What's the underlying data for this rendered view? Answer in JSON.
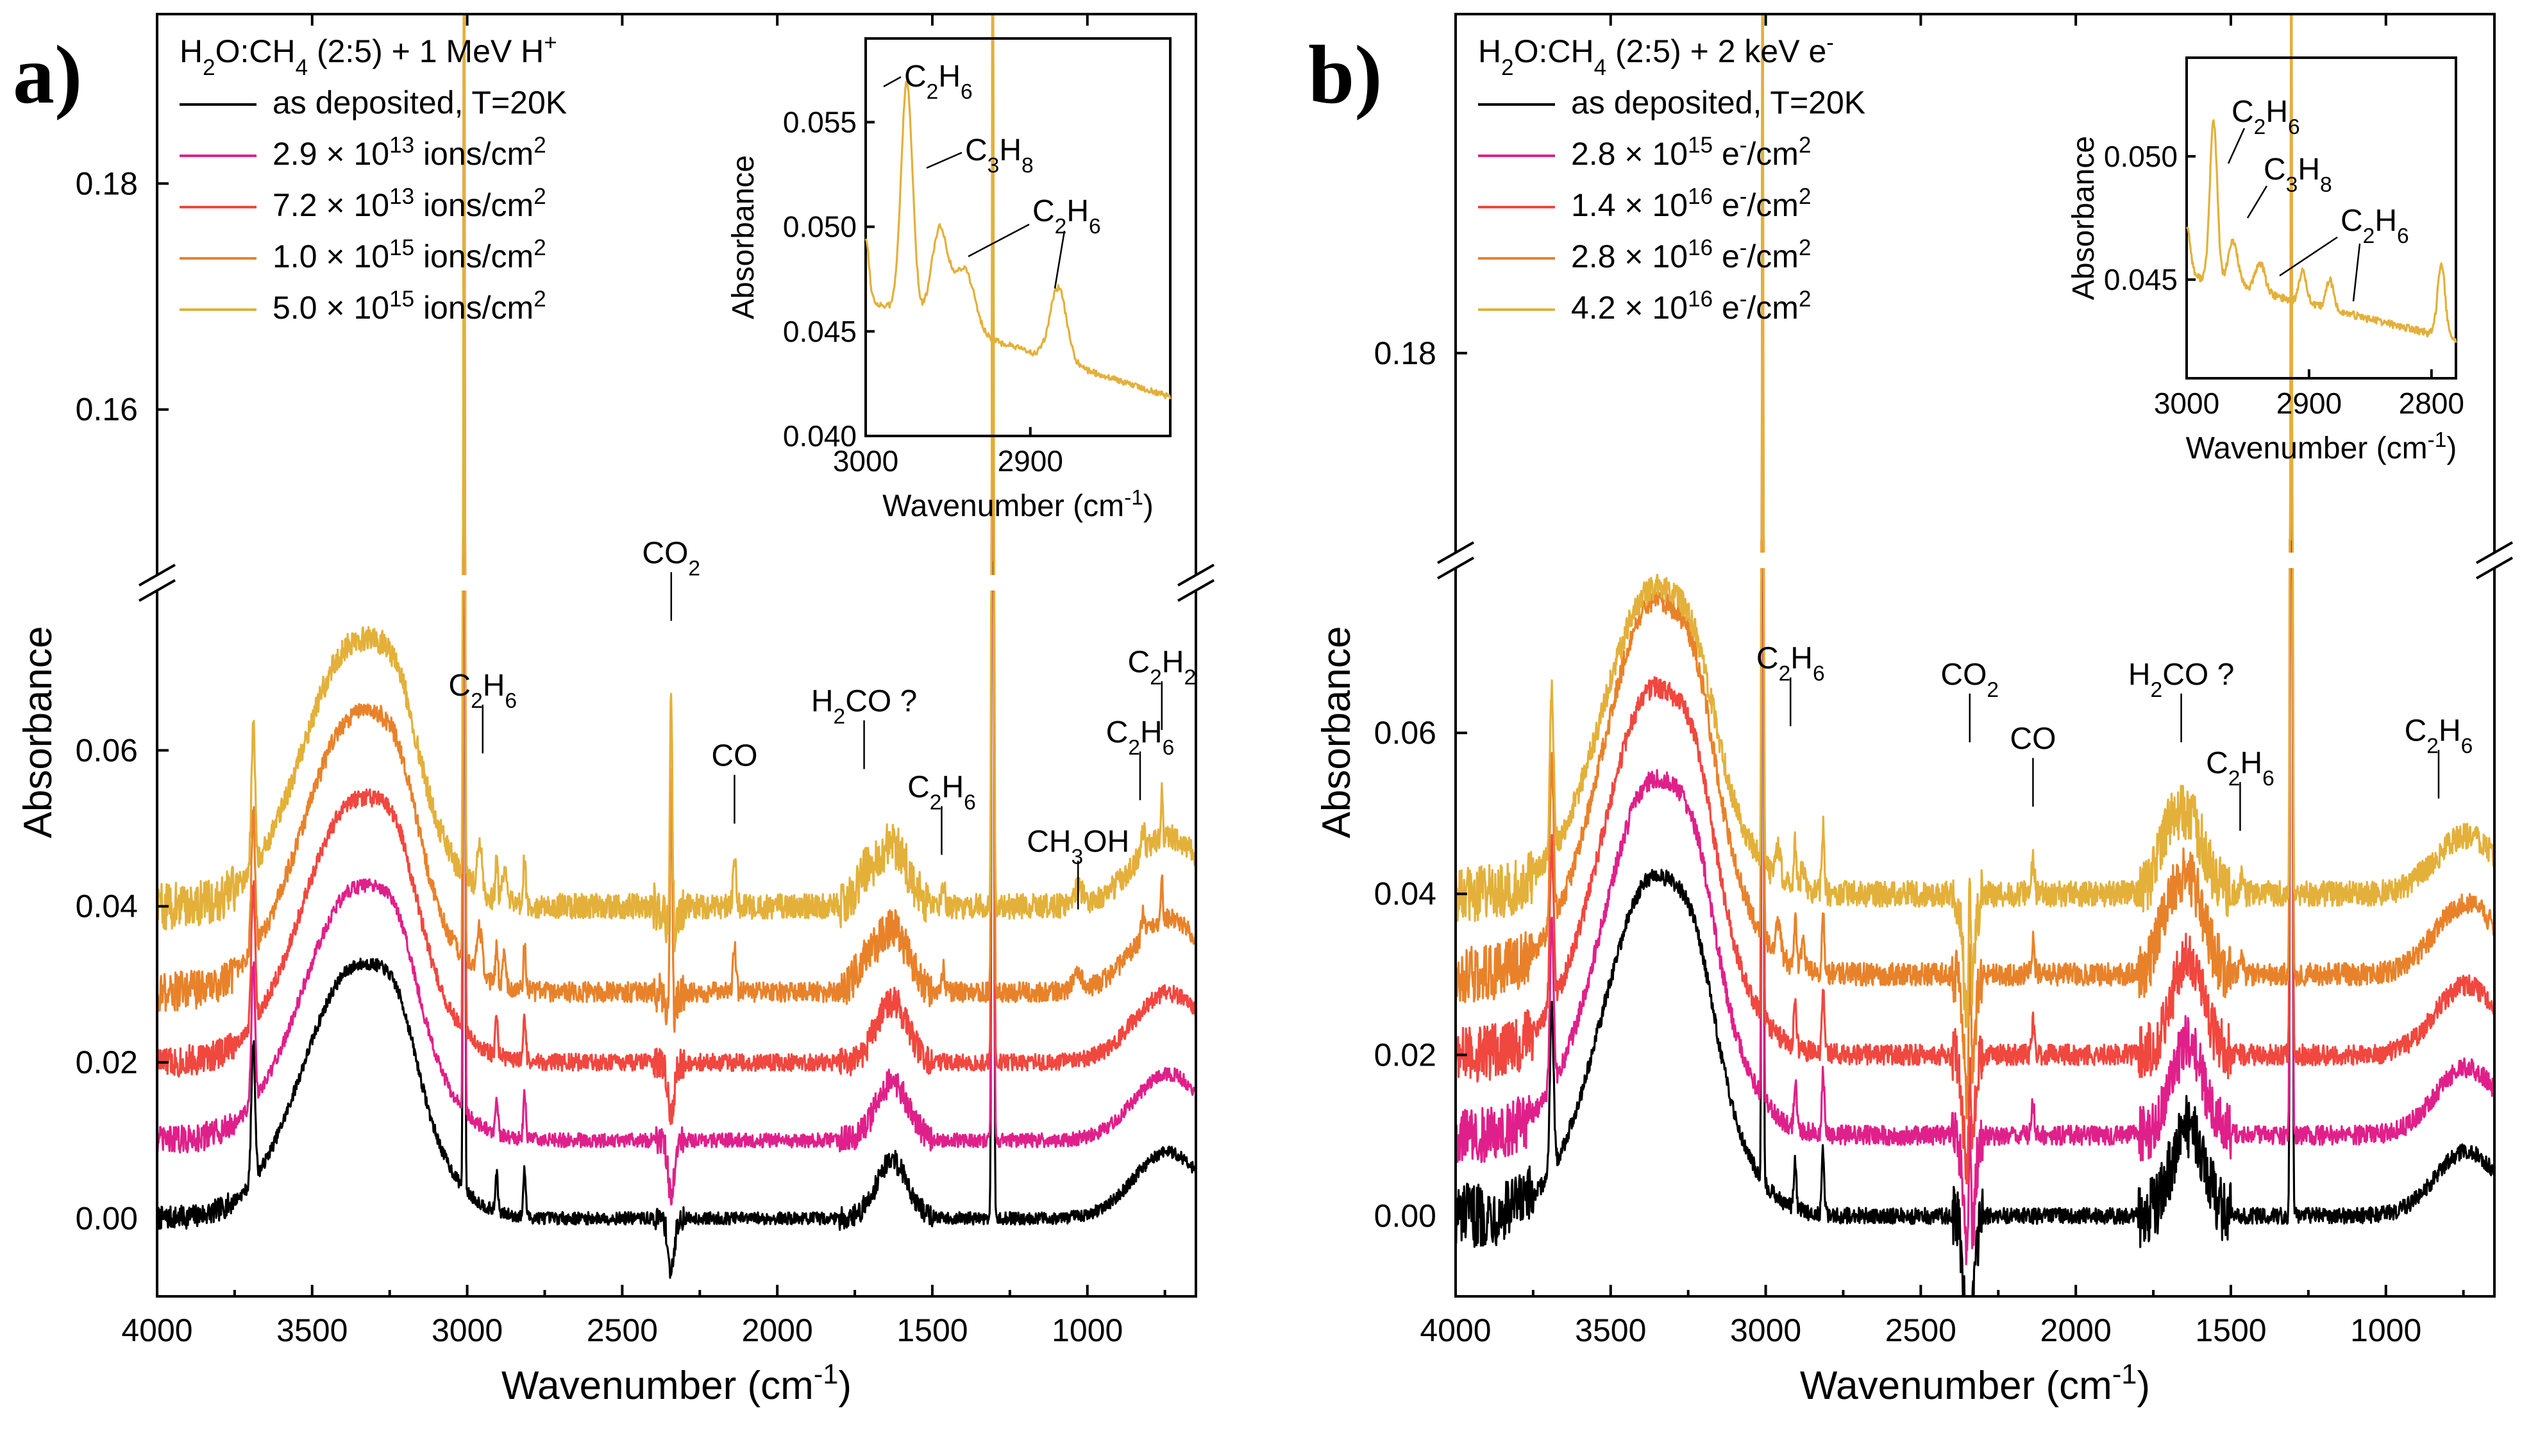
{
  "chart_data": [
    {
      "panel_label": "a)",
      "type": "line",
      "title": "H2O:CH4 (2:5) + 1 MeV H+",
      "legend_title": {
        "base": "H",
        "s1": "2",
        "m1": "O:CH",
        "s2": "4",
        "rest": " (2:5) + 1 MeV H",
        "sup": "+"
      },
      "xlabel": {
        "text": "Wavenumber (cm",
        "sup": "-1",
        "end": ")"
      },
      "ylabel": "Absorbance",
      "xlim": [
        4000,
        650
      ],
      "x_ticks": [
        4000,
        3500,
        3000,
        2500,
        2000,
        1500,
        1000
      ],
      "x_tick_labels": [
        "4000",
        "3500",
        "3000",
        "2500",
        "2000",
        "1500",
        "1000"
      ],
      "ylim_lower": [
        -0.01,
        0.08
      ],
      "ylim_upper": [
        0.145,
        0.195
      ],
      "y_ticks_lower": [
        0.0,
        0.02,
        0.04,
        0.06
      ],
      "y_tick_labels_lower": [
        "0.00",
        "0.02",
        "0.04",
        "0.06"
      ],
      "y_ticks_upper": [
        0.16,
        0.18
      ],
      "y_tick_labels_upper": [
        "0.16",
        "0.18"
      ],
      "series": [
        {
          "name": "as deposited, T=20K",
          "label": {
            "text": "as deposited, T=20K"
          },
          "color": "#000000",
          "offset": 0.0,
          "scale": 1.0,
          "noise": 0.0008,
          "lowwn_noise": 0.0015
        },
        {
          "name": "2.9 × 10^13 ions/cm^2",
          "label": {
            "pre": "2.9 × 10",
            "exp": "13",
            "unit": " ions/cm",
            "usup": "2"
          },
          "color": "#e0208a",
          "offset": 0.01,
          "scale": 1.0,
          "noise": 0.0009,
          "lowwn_noise": 0.0018
        },
        {
          "name": "7.2 × 10^13 ions/cm^2",
          "label": {
            "pre": "7.2 × 10",
            "exp": "13",
            "unit": " ions/cm",
            "usup": "2"
          },
          "color": "#f0473f",
          "offset": 0.02,
          "scale": 1.04,
          "noise": 0.0011,
          "lowwn_noise": 0.002
        },
        {
          "name": "1.0 × 10^15 ions/cm^2",
          "label": {
            "pre": "1.0 × 10",
            "exp": "15",
            "unit": " ions/cm",
            "usup": "2"
          },
          "color": "#e8822a",
          "offset": 0.029,
          "scale": 1.1,
          "noise": 0.0013,
          "lowwn_noise": 0.0025
        },
        {
          "name": "5.0 × 10^15 ions/cm^2",
          "label": {
            "pre": "5.0 × 10",
            "exp": "15",
            "unit": " ions/cm",
            "usup": "2"
          },
          "color": "#e3b03a",
          "offset": 0.04,
          "scale": 1.05,
          "noise": 0.0016,
          "lowwn_noise": 0.003
        }
      ],
      "annotations": [
        {
          "label": "CO",
          "sub": "2",
          "suffix": "",
          "x": 2342,
          "y_text": 0.084
        },
        {
          "label": "C",
          "sub": "2",
          "mid": "H",
          "sub2": "6",
          "suffix": "",
          "x": 2950,
          "y_text": 0.067
        },
        {
          "label": "CO",
          "sub": "",
          "suffix": "",
          "x": 2138,
          "y_text": 0.058
        },
        {
          "label": "H",
          "sub": "2",
          "mid": "CO ?",
          "sub2": "",
          "suffix": "",
          "x": 1720,
          "y_text": 0.065
        },
        {
          "label": "C",
          "sub": "2",
          "mid": "H",
          "sub2": "6",
          "suffix": "",
          "x": 1470,
          "y_text": 0.054
        },
        {
          "label": "CH",
          "sub": "3",
          "mid": "OH",
          "sub2": "",
          "suffix": "",
          "x": 1030,
          "y_text": 0.047
        },
        {
          "label": "C",
          "sub": "2",
          "mid": "H",
          "sub2": "6",
          "suffix": "",
          "x": 830,
          "y_text": 0.061
        },
        {
          "label": "C",
          "sub": "2",
          "mid": "H",
          "sub2": "2",
          "suffix": "",
          "x": 760,
          "y_text": 0.07
        }
      ],
      "inset": {
        "xlabel": {
          "text": "Wavenumber (cm",
          "sup": "-1",
          "end": ")"
        },
        "ylabel": "Absorbance",
        "xlim": [
          3000,
          2815
        ],
        "ylim": [
          0.04,
          0.059
        ],
        "x_ticks": [
          3000,
          2900
        ],
        "x_tick_labels": [
          "3000",
          "2900"
        ],
        "y_ticks": [
          0.04,
          0.045,
          0.05,
          0.055
        ],
        "y_tick_labels": [
          "0.040",
          "0.045",
          "0.050",
          "0.055"
        ],
        "color": "#e3b03a",
        "labels": [
          {
            "text": "C",
            "s1": "2",
            "mid": "H",
            "s2": "6"
          },
          {
            "text": "C",
            "s1": "3",
            "mid": "H",
            "s2": "8"
          },
          {
            "text": "C",
            "s1": "2",
            "mid": "H",
            "s2": "6"
          }
        ]
      }
    },
    {
      "panel_label": "b)",
      "type": "line",
      "title": "H2O:CH4 (2:5) + 2 keV e-",
      "legend_title": {
        "base": "H",
        "s1": "2",
        "m1": "O:CH",
        "s2": "4",
        "rest": " (2:5) + 2 keV e",
        "sup": "-"
      },
      "xlabel": {
        "text": "Wavenumber (cm",
        "sup": "-1",
        "end": ")"
      },
      "ylabel": "Absorbance",
      "xlim": [
        4000,
        650
      ],
      "x_ticks": [
        4000,
        3500,
        3000,
        2500,
        2000,
        1500,
        1000
      ],
      "x_tick_labels": [
        "4000",
        "3500",
        "3000",
        "2500",
        "2000",
        "1500",
        "1000"
      ],
      "ylim_lower": [
        -0.01,
        0.08
      ],
      "ylim_upper": [
        0.165,
        0.205
      ],
      "y_ticks_lower": [
        0.0,
        0.02,
        0.04,
        0.06
      ],
      "y_tick_labels_lower": [
        "0.00",
        "0.02",
        "0.04",
        "0.06"
      ],
      "y_ticks_upper": [
        0.18
      ],
      "y_tick_labels_upper": [
        "0.18"
      ],
      "series": [
        {
          "name": "as deposited, T=20K",
          "label": {
            "text": "as deposited, T=20K"
          },
          "color": "#000000",
          "offset": 0.0,
          "scale": 1.0,
          "noise": 0.001,
          "lowwn_noise": 0.004
        },
        {
          "name": "2.8 × 10^15 e-/cm^2",
          "label": {
            "pre": "2.8 × 10",
            "exp": "15",
            "unit": " e",
            "esup": "-",
            "unit2": "/cm",
            "usup": "2"
          },
          "color": "#e0208a",
          "offset": 0.01,
          "scale": 1.05,
          "noise": 0.0012,
          "lowwn_noise": 0.0035
        },
        {
          "name": "1.4 × 10^16 e-/cm^2",
          "label": {
            "pre": "1.4 × 10",
            "exp": "16",
            "unit": " e",
            "esup": "-",
            "unit2": "/cm",
            "usup": "2"
          },
          "color": "#f0473f",
          "offset": 0.02,
          "scale": 1.08,
          "noise": 0.0013,
          "lowwn_noise": 0.0035
        },
        {
          "name": "2.8 × 10^16 e-/cm^2",
          "label": {
            "pre": "2.8 × 10",
            "exp": "16",
            "unit": " e",
            "esup": "-",
            "unit2": "/cm",
            "usup": "2"
          },
          "color": "#e8822a",
          "offset": 0.03,
          "scale": 1.1,
          "noise": 0.0014,
          "lowwn_noise": 0.0035
        },
        {
          "name": "4.2 × 10^16 e-/cm^2",
          "label": {
            "pre": "4.2 × 10",
            "exp": "16",
            "unit": " e",
            "esup": "-",
            "unit2": "/cm",
            "usup": "2"
          },
          "color": "#e3b03a",
          "offset": 0.04,
          "scale": 0.9,
          "noise": 0.0016,
          "lowwn_noise": 0.0035
        }
      ],
      "annotations": [
        {
          "label": "C",
          "sub": "2",
          "mid": "H",
          "sub2": "6",
          "suffix": "",
          "x": 2920,
          "y_text": 0.068
        },
        {
          "label": "CO",
          "sub": "2",
          "suffix": "",
          "x": 2342,
          "y_text": 0.066
        },
        {
          "label": "CO",
          "sub": "",
          "suffix": "",
          "x": 2138,
          "y_text": 0.058
        },
        {
          "label": "H",
          "sub": "2",
          "mid": "CO ?",
          "sub2": "",
          "suffix": "",
          "x": 1660,
          "y_text": 0.066
        },
        {
          "label": "C",
          "sub": "2",
          "mid": "H",
          "sub2": "6",
          "suffix": "",
          "x": 1470,
          "y_text": 0.055
        },
        {
          "label": "C",
          "sub": "2",
          "mid": "H",
          "sub2": "6",
          "suffix": "",
          "x": 830,
          "y_text": 0.059
        }
      ],
      "inset": {
        "xlabel": {
          "text": "Wavenumber (cm",
          "sup": "-1",
          "end": ")"
        },
        "ylabel": "Absorbance",
        "xlim": [
          3000,
          2780
        ],
        "ylim": [
          0.041,
          0.054
        ],
        "x_ticks": [
          3000,
          2900,
          2800
        ],
        "x_tick_labels": [
          "3000",
          "2900",
          "2800"
        ],
        "y_ticks": [
          0.045,
          0.05
        ],
        "y_tick_labels": [
          "0.045",
          "0.050"
        ],
        "color": "#e3b03a",
        "labels": [
          {
            "text": "C",
            "s1": "2",
            "mid": "H",
            "s2": "6"
          },
          {
            "text": "C",
            "s1": "3",
            "mid": "H",
            "s2": "8"
          },
          {
            "text": "C",
            "s1": "2",
            "mid": "H",
            "s2": "6"
          }
        ]
      }
    }
  ]
}
